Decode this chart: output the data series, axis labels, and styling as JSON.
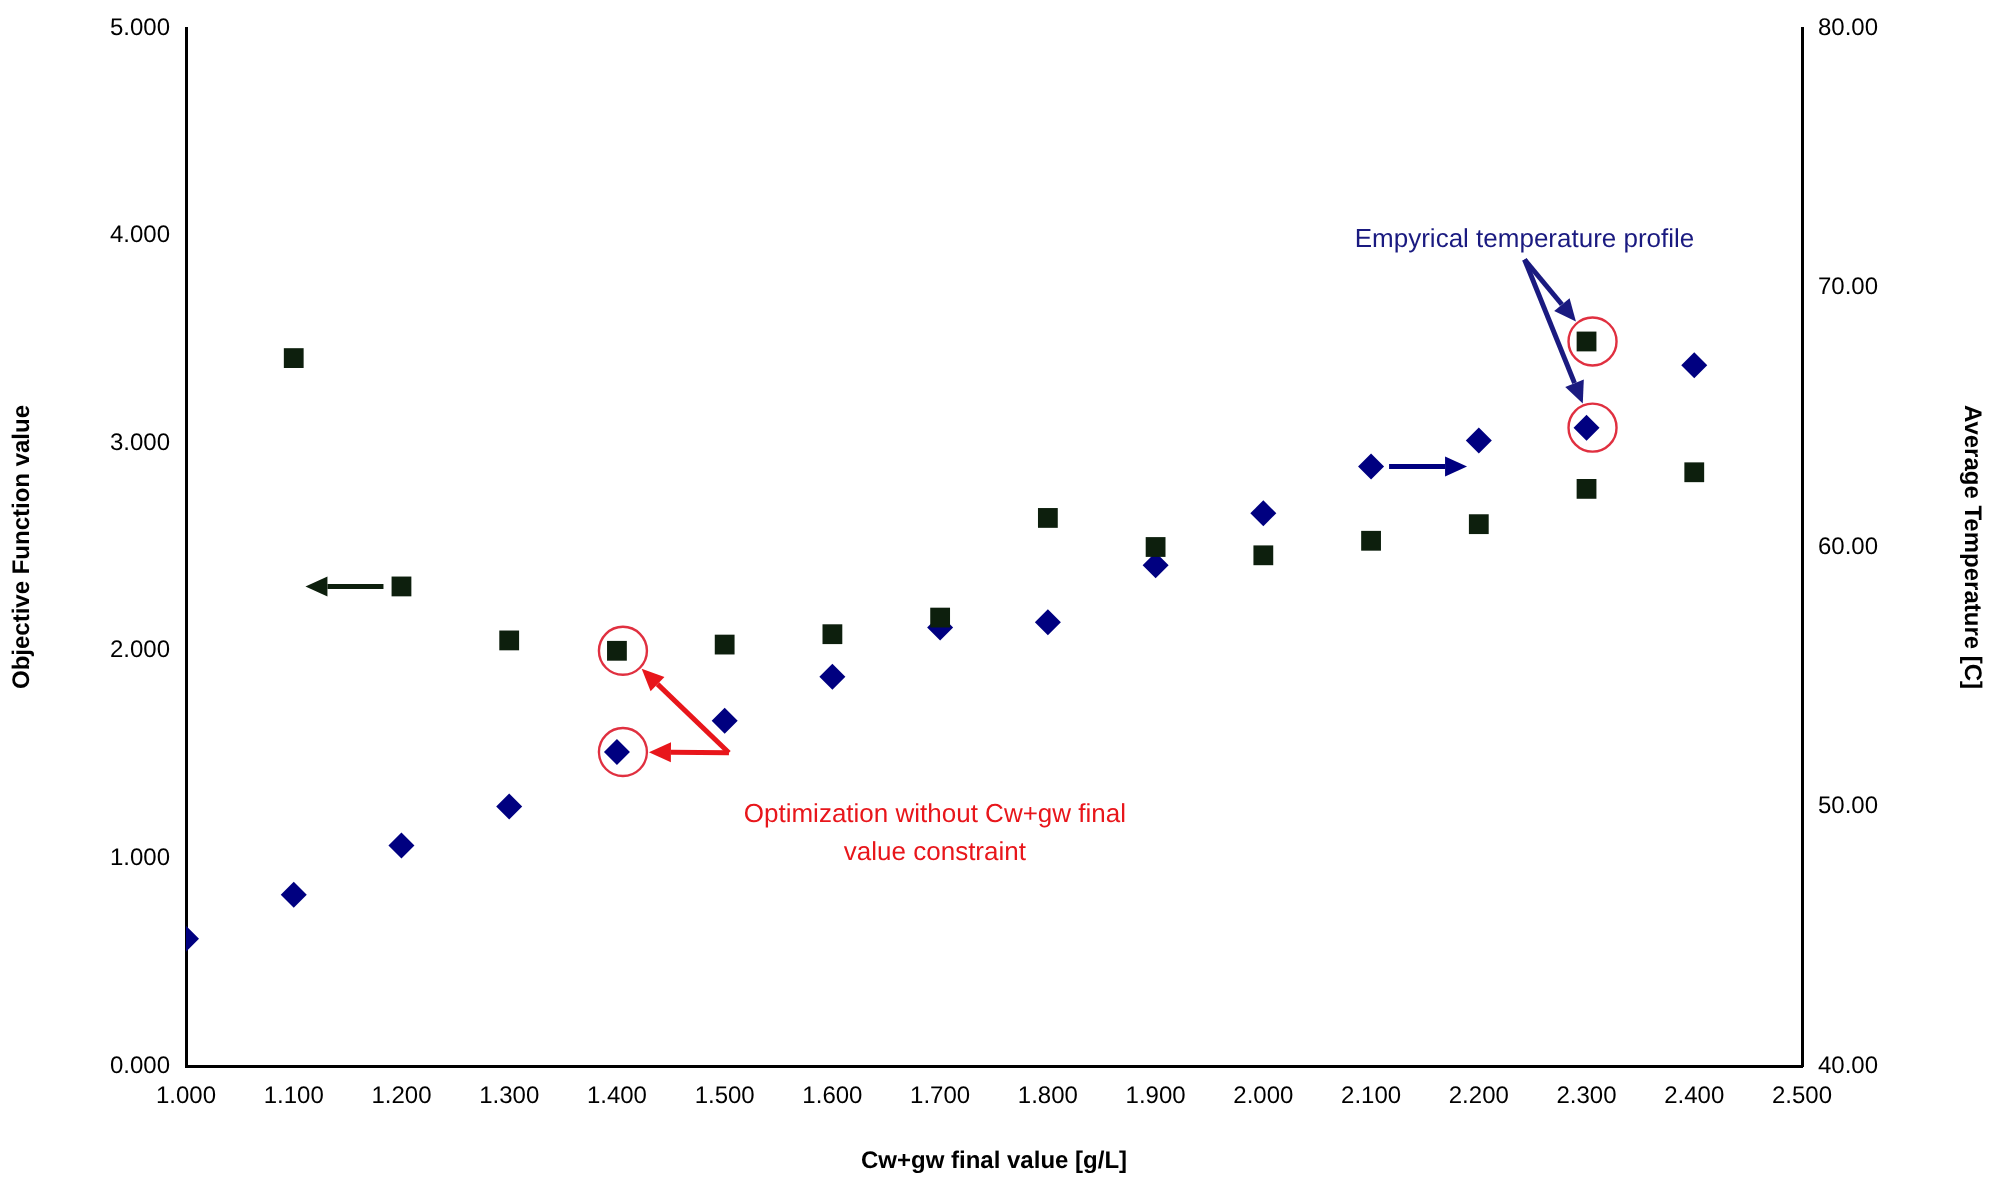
{
  "chart_data": {
    "type": "scatter",
    "xlabel": "Cw+gw final value [g/L]",
    "ylabel": "Objective Function value",
    "y2label": "Average Temperature [C]",
    "xlim": [
      1.0,
      2.5
    ],
    "xticks": [
      {
        "value": 1.0,
        "label": "1.000"
      },
      {
        "value": 1.1,
        "label": "1.100"
      },
      {
        "value": 1.2,
        "label": "1.200"
      },
      {
        "value": 1.3,
        "label": "1.300"
      },
      {
        "value": 1.4,
        "label": "1.400"
      },
      {
        "value": 1.5,
        "label": "1.500"
      },
      {
        "value": 1.6,
        "label": "1.600"
      },
      {
        "value": 1.7,
        "label": "1.700"
      },
      {
        "value": 1.8,
        "label": "1.800"
      },
      {
        "value": 1.9,
        "label": "1.900"
      },
      {
        "value": 2.0,
        "label": "2.000"
      },
      {
        "value": 2.1,
        "label": "2.100"
      },
      {
        "value": 2.2,
        "label": "2.200"
      },
      {
        "value": 2.3,
        "label": "2.300"
      },
      {
        "value": 2.4,
        "label": "2.400"
      },
      {
        "value": 2.5,
        "label": "2.500"
      }
    ],
    "ylim": [
      0,
      5
    ],
    "yticks": [
      {
        "value": 0,
        "label": "0.000"
      },
      {
        "value": 1,
        "label": "1.000"
      },
      {
        "value": 2,
        "label": "2.000"
      },
      {
        "value": 3,
        "label": "3.000"
      },
      {
        "value": 4,
        "label": "4.000"
      },
      {
        "value": 5,
        "label": "5.000"
      }
    ],
    "y2lim": [
      40,
      80
    ],
    "y2ticks": [
      {
        "value": 40,
        "label": "40.00"
      },
      {
        "value": 50,
        "label": "50.00"
      },
      {
        "value": 60,
        "label": "60.00"
      },
      {
        "value": 70,
        "label": "70.00"
      },
      {
        "value": 80,
        "label": "80.00"
      }
    ],
    "grid": false,
    "legend": false,
    "annotations": [
      "Optimization without Cw+gw final value constraint",
      "Empyrical temperature profile"
    ],
    "series": [
      {
        "color": "#0d1f0d",
        "marker": "square",
        "axis": "y",
        "x": [
          1.1,
          1.2,
          1.3,
          1.5,
          1.6,
          1.7,
          1.8,
          1.9,
          2.0,
          2.1,
          2.2,
          2.3,
          2.4
        ],
        "values": [
          3.41,
          2.31,
          2.05,
          2.03,
          2.08,
          2.16,
          2.64,
          2.5,
          2.46,
          2.53,
          2.61,
          2.78,
          2.86
        ]
      },
      {
        "color": "#000080",
        "marker": "diamond",
        "axis": "y2",
        "x": [
          1.0,
          1.1,
          1.2,
          1.3,
          1.5,
          1.6,
          1.7,
          1.8,
          1.9,
          2.0,
          2.1,
          2.2,
          2.4
        ],
        "values": [
          44.9,
          46.6,
          48.5,
          50.0,
          53.3,
          55.0,
          56.9,
          57.1,
          59.3,
          61.3,
          63.1,
          64.1,
          67.0
        ]
      },
      {
        "color": "#0d1f0d",
        "marker": "square",
        "axis": "y",
        "x": [
          1.4
        ],
        "values": [
          2.0
        ]
      },
      {
        "color": "#000080",
        "marker": "diamond",
        "axis": "y2",
        "x": [
          1.4
        ],
        "values": [
          52.1
        ]
      },
      {
        "color": "#0d1f0d",
        "marker": "square",
        "axis": "y",
        "x": [
          2.3
        ],
        "values": [
          3.49
        ]
      },
      {
        "color": "#000080",
        "marker": "diamond",
        "axis": "y2",
        "x": [
          2.3
        ],
        "values": [
          64.6
        ]
      }
    ]
  }
}
